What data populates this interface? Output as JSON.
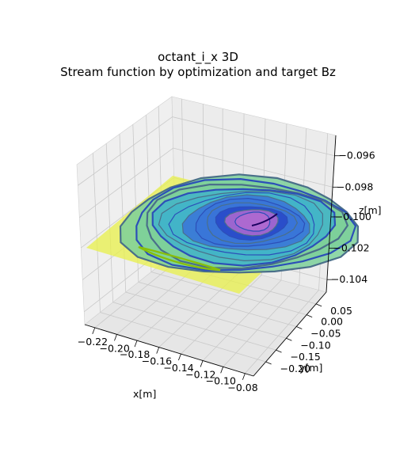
{
  "chart_data": {
    "type": "3d-surface-contour",
    "title": "octant_i_x 3D",
    "subtitle": "Stream function by optimization and target Bz",
    "xlabel": "x[m]",
    "ylabel": "y[m]",
    "zlabel": "z[m]",
    "x_ticks": [
      "−0.22",
      "−0.20",
      "−0.18",
      "−0.16",
      "−0.14",
      "−0.12",
      "−0.10",
      "−0.08"
    ],
    "y_ticks": [
      "0.05",
      "0.00",
      "−0.05",
      "−0.10",
      "−0.15",
      "−0.20"
    ],
    "z_ticks": [
      "−0.096",
      "−0.098",
      "−0.100",
      "−0.102",
      "−0.104"
    ],
    "xlim": [
      -0.235,
      -0.07
    ],
    "ylim": [
      -0.22,
      0.07
    ],
    "zlim": [
      -0.105,
      -0.095
    ],
    "surface_z": -0.1,
    "grid": true,
    "series": [
      {
        "type": "target-plane",
        "z": -0.1,
        "color": "#e8f050"
      },
      {
        "type": "stream-function-contours",
        "levels": 12,
        "colormap": [
          "#2848c8",
          "#3a74d8",
          "#42b4c8",
          "#7cd09a",
          "#c2e070"
        ]
      },
      {
        "type": "target-bz-contour",
        "color": "#88bf0a"
      }
    ]
  }
}
